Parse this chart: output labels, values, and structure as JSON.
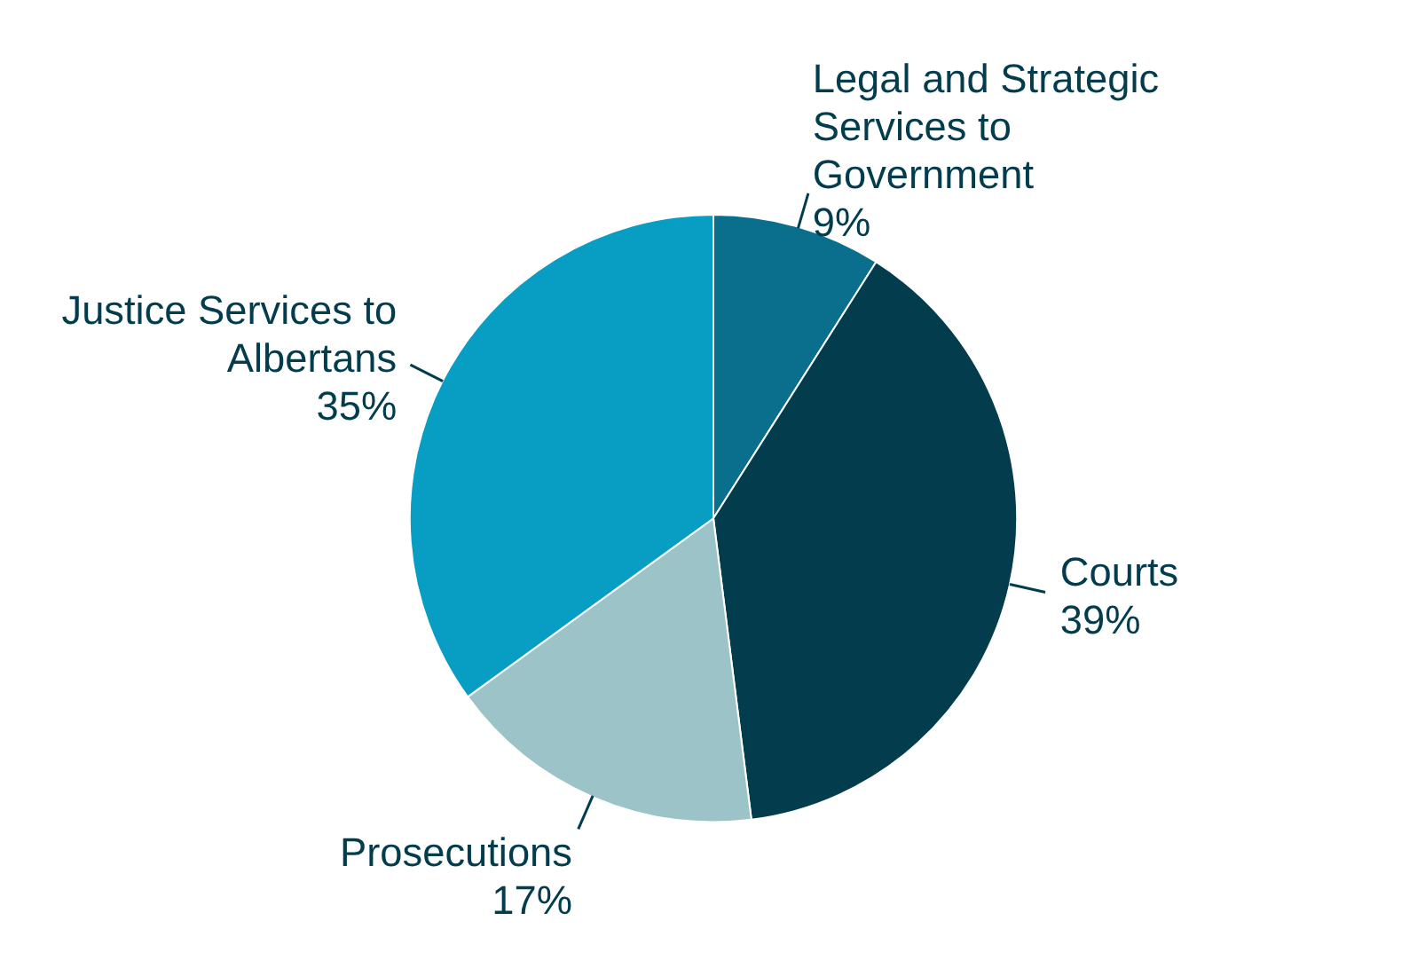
{
  "chart_data": {
    "type": "pie",
    "categories": [
      "Legal and Strategic Services to Government",
      "Courts",
      "Prosecutions",
      "Justice Services to Albertans"
    ],
    "values": [
      9,
      39,
      17,
      35
    ],
    "colors": [
      "#0a6f8c",
      "#033d4d",
      "#9cc4c8",
      "#089dc2"
    ],
    "value_labels": [
      "9%",
      "39%",
      "17%",
      "35%"
    ]
  }
}
